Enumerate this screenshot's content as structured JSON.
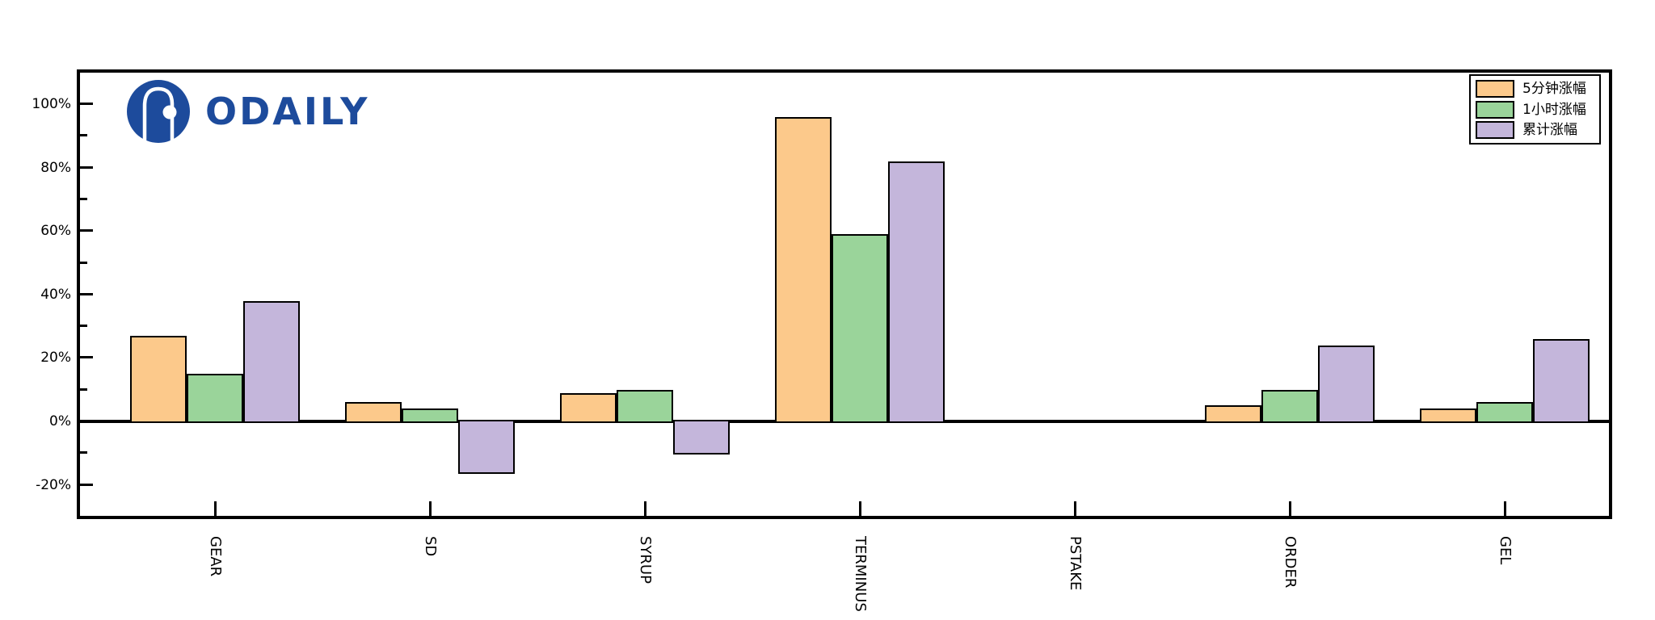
{
  "branding": {
    "logo_text": "ODAILY",
    "brand_color": "#1d4b9c"
  },
  "chart_data": {
    "type": "bar",
    "title": "",
    "categories": [
      "GEAR",
      "SD",
      "SYRUP",
      "TERMINUS",
      "PSTAKE",
      "ORDER",
      "GEL"
    ],
    "series": [
      {
        "name": "5分钟涨幅",
        "color": "#FCC98B",
        "values": [
          27,
          6,
          9,
          96,
          0,
          5,
          4
        ]
      },
      {
        "name": "1小时涨幅",
        "color": "#9AD49A",
        "values": [
          15,
          4,
          10,
          59,
          0,
          10,
          6
        ]
      },
      {
        "name": "累计涨幅",
        "color": "#C4B6DB",
        "values": [
          38,
          -16,
          -10,
          82,
          0,
          24,
          26
        ]
      }
    ],
    "y_axis": {
      "unit": "%",
      "ylim": [
        -30,
        110
      ],
      "major_ticks": [
        {
          "value": 100,
          "label": "100%"
        },
        {
          "value": 80,
          "label": "80%"
        },
        {
          "value": 60,
          "label": "60%"
        },
        {
          "value": 40,
          "label": "40%"
        },
        {
          "value": 20,
          "label": "20%"
        },
        {
          "value": 0,
          "label": "0%"
        },
        {
          "value": -20,
          "label": "-20%"
        }
      ],
      "minor_ticks": [
        90,
        70,
        50,
        30,
        10,
        -10
      ]
    },
    "legend_position": "top-right",
    "grid": false,
    "bar_edge_color": "#000000"
  }
}
